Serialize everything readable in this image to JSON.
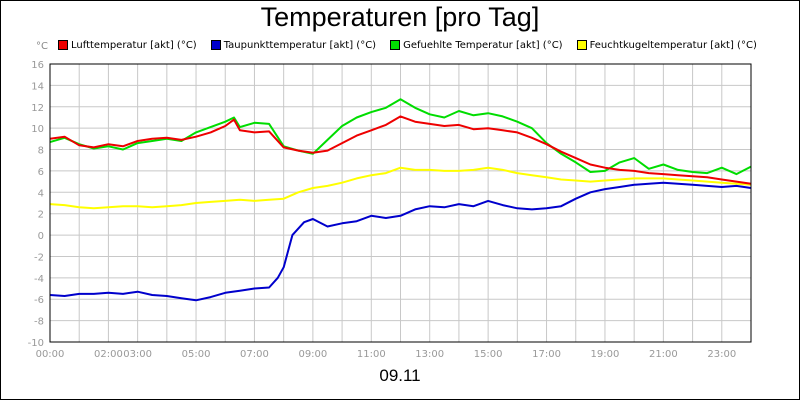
{
  "chart_data": {
    "type": "line",
    "title": "Temperaturen [pro Tag]",
    "y_unit": "°C",
    "xlabel": "09.11",
    "ylim": [
      -10,
      16
    ],
    "xlim": [
      0,
      24
    ],
    "y_ticks": [
      16,
      14,
      12,
      10,
      8,
      6,
      4,
      2,
      0,
      -2,
      -4,
      -6,
      -8,
      -10
    ],
    "x_ticks": [
      {
        "h": 0,
        "label": "00:00"
      },
      {
        "h": 2,
        "label": "02:00"
      },
      {
        "h": 3,
        "label": "03:00"
      },
      {
        "h": 5,
        "label": "05:00"
      },
      {
        "h": 7,
        "label": "07:00"
      },
      {
        "h": 9,
        "label": "09:00"
      },
      {
        "h": 11,
        "label": "11:00"
      },
      {
        "h": 13,
        "label": "13:00"
      },
      {
        "h": 15,
        "label": "15:00"
      },
      {
        "h": 17,
        "label": "17:00"
      },
      {
        "h": 19,
        "label": "19:00"
      },
      {
        "h": 21,
        "label": "21:00"
      },
      {
        "h": 23,
        "label": "23:00"
      }
    ],
    "grid": true,
    "legend_position": "top",
    "series": [
      {
        "name": "Lufttemperatur [akt] (°C)",
        "color": "#ee0000",
        "values": [
          [
            0,
            9.0
          ],
          [
            0.5,
            9.2
          ],
          [
            1,
            8.4
          ],
          [
            1.5,
            8.2
          ],
          [
            2,
            8.5
          ],
          [
            2.5,
            8.3
          ],
          [
            3,
            8.8
          ],
          [
            3.5,
            9.0
          ],
          [
            4,
            9.1
          ],
          [
            4.5,
            8.9
          ],
          [
            5,
            9.2
          ],
          [
            5.5,
            9.6
          ],
          [
            6,
            10.2
          ],
          [
            6.3,
            10.8
          ],
          [
            6.5,
            9.8
          ],
          [
            7,
            9.6
          ],
          [
            7.5,
            9.7
          ],
          [
            8,
            8.2
          ],
          [
            8.5,
            7.9
          ],
          [
            9,
            7.7
          ],
          [
            9.5,
            7.9
          ],
          [
            10,
            8.6
          ],
          [
            10.5,
            9.3
          ],
          [
            11,
            9.8
          ],
          [
            11.5,
            10.3
          ],
          [
            12,
            11.1
          ],
          [
            12.5,
            10.6
          ],
          [
            13,
            10.4
          ],
          [
            13.5,
            10.2
          ],
          [
            14,
            10.3
          ],
          [
            14.5,
            9.9
          ],
          [
            15,
            10.0
          ],
          [
            15.5,
            9.8
          ],
          [
            16,
            9.6
          ],
          [
            16.5,
            9.1
          ],
          [
            17,
            8.5
          ],
          [
            17.5,
            7.8
          ],
          [
            18,
            7.2
          ],
          [
            18.5,
            6.6
          ],
          [
            19,
            6.3
          ],
          [
            19.5,
            6.1
          ],
          [
            20,
            6.0
          ],
          [
            20.5,
            5.8
          ],
          [
            21,
            5.7
          ],
          [
            21.5,
            5.6
          ],
          [
            22,
            5.5
          ],
          [
            22.5,
            5.4
          ],
          [
            23,
            5.2
          ],
          [
            23.5,
            5.0
          ],
          [
            24,
            4.8
          ]
        ]
      },
      {
        "name": "Taupunkttemperatur [akt] (°C)",
        "color": "#0000cc",
        "values": [
          [
            0,
            -5.6
          ],
          [
            0.5,
            -5.7
          ],
          [
            1,
            -5.5
          ],
          [
            1.5,
            -5.5
          ],
          [
            2,
            -5.4
          ],
          [
            2.5,
            -5.5
          ],
          [
            3,
            -5.3
          ],
          [
            3.5,
            -5.6
          ],
          [
            4,
            -5.7
          ],
          [
            4.5,
            -5.9
          ],
          [
            5,
            -6.1
          ],
          [
            5.5,
            -5.8
          ],
          [
            6,
            -5.4
          ],
          [
            6.5,
            -5.2
          ],
          [
            7,
            -5.0
          ],
          [
            7.5,
            -4.9
          ],
          [
            7.8,
            -4.0
          ],
          [
            8,
            -3.0
          ],
          [
            8.3,
            0.0
          ],
          [
            8.7,
            1.2
          ],
          [
            9,
            1.5
          ],
          [
            9.5,
            0.8
          ],
          [
            10,
            1.1
          ],
          [
            10.5,
            1.3
          ],
          [
            11,
            1.8
          ],
          [
            11.5,
            1.6
          ],
          [
            12,
            1.8
          ],
          [
            12.5,
            2.4
          ],
          [
            13,
            2.7
          ],
          [
            13.5,
            2.6
          ],
          [
            14,
            2.9
          ],
          [
            14.5,
            2.7
          ],
          [
            15,
            3.2
          ],
          [
            15.5,
            2.8
          ],
          [
            16,
            2.5
          ],
          [
            16.5,
            2.4
          ],
          [
            17,
            2.5
          ],
          [
            17.5,
            2.7
          ],
          [
            18,
            3.4
          ],
          [
            18.5,
            4.0
          ],
          [
            19,
            4.3
          ],
          [
            19.5,
            4.5
          ],
          [
            20,
            4.7
          ],
          [
            20.5,
            4.8
          ],
          [
            21,
            4.9
          ],
          [
            21.5,
            4.8
          ],
          [
            22,
            4.7
          ],
          [
            22.5,
            4.6
          ],
          [
            23,
            4.5
          ],
          [
            23.5,
            4.6
          ],
          [
            24,
            4.4
          ]
        ]
      },
      {
        "name": "Gefuehlte Temperatur [akt] (°C)",
        "color": "#00dd00",
        "values": [
          [
            0,
            8.7
          ],
          [
            0.5,
            9.1
          ],
          [
            1,
            8.5
          ],
          [
            1.5,
            8.1
          ],
          [
            2,
            8.3
          ],
          [
            2.5,
            8.0
          ],
          [
            3,
            8.6
          ],
          [
            3.5,
            8.8
          ],
          [
            4,
            9.0
          ],
          [
            4.5,
            8.8
          ],
          [
            5,
            9.6
          ],
          [
            5.5,
            10.1
          ],
          [
            6,
            10.6
          ],
          [
            6.3,
            11.0
          ],
          [
            6.5,
            10.1
          ],
          [
            7,
            10.5
          ],
          [
            7.5,
            10.4
          ],
          [
            8,
            8.3
          ],
          [
            8.5,
            7.9
          ],
          [
            9,
            7.6
          ],
          [
            9.5,
            8.9
          ],
          [
            10,
            10.2
          ],
          [
            10.5,
            11.0
          ],
          [
            11,
            11.5
          ],
          [
            11.5,
            11.9
          ],
          [
            12,
            12.7
          ],
          [
            12.5,
            11.9
          ],
          [
            13,
            11.3
          ],
          [
            13.5,
            11.0
          ],
          [
            14,
            11.6
          ],
          [
            14.5,
            11.2
          ],
          [
            15,
            11.4
          ],
          [
            15.5,
            11.1
          ],
          [
            16,
            10.6
          ],
          [
            16.5,
            10.0
          ],
          [
            17,
            8.6
          ],
          [
            17.5,
            7.6
          ],
          [
            18,
            6.8
          ],
          [
            18.5,
            5.9
          ],
          [
            19,
            6.0
          ],
          [
            19.5,
            6.8
          ],
          [
            20,
            7.2
          ],
          [
            20.5,
            6.2
          ],
          [
            21,
            6.6
          ],
          [
            21.5,
            6.1
          ],
          [
            22,
            5.9
          ],
          [
            22.5,
            5.8
          ],
          [
            23,
            6.3
          ],
          [
            23.5,
            5.7
          ],
          [
            24,
            6.4
          ]
        ]
      },
      {
        "name": "Feuchtkugeltemperatur [akt] (°C)",
        "color": "#ffff00",
        "values": [
          [
            0,
            2.9
          ],
          [
            0.5,
            2.8
          ],
          [
            1,
            2.6
          ],
          [
            1.5,
            2.5
          ],
          [
            2,
            2.6
          ],
          [
            2.5,
            2.7
          ],
          [
            3,
            2.7
          ],
          [
            3.5,
            2.6
          ],
          [
            4,
            2.7
          ],
          [
            4.5,
            2.8
          ],
          [
            5,
            3.0
          ],
          [
            5.5,
            3.1
          ],
          [
            6,
            3.2
          ],
          [
            6.5,
            3.3
          ],
          [
            7,
            3.2
          ],
          [
            7.5,
            3.3
          ],
          [
            8,
            3.4
          ],
          [
            8.5,
            4.0
          ],
          [
            9,
            4.4
          ],
          [
            9.5,
            4.6
          ],
          [
            10,
            4.9
          ],
          [
            10.5,
            5.3
          ],
          [
            11,
            5.6
          ],
          [
            11.5,
            5.8
          ],
          [
            12,
            6.3
          ],
          [
            12.5,
            6.1
          ],
          [
            13,
            6.1
          ],
          [
            13.5,
            6.0
          ],
          [
            14,
            6.0
          ],
          [
            14.5,
            6.1
          ],
          [
            15,
            6.3
          ],
          [
            15.5,
            6.1
          ],
          [
            16,
            5.8
          ],
          [
            16.5,
            5.6
          ],
          [
            17,
            5.4
          ],
          [
            17.5,
            5.2
          ],
          [
            18,
            5.1
          ],
          [
            18.5,
            5.0
          ],
          [
            19,
            5.1
          ],
          [
            19.5,
            5.2
          ],
          [
            20,
            5.3
          ],
          [
            20.5,
            5.3
          ],
          [
            21,
            5.3
          ],
          [
            21.5,
            5.2
          ],
          [
            22,
            5.1
          ],
          [
            22.5,
            5.0
          ],
          [
            23,
            4.9
          ],
          [
            23.5,
            4.8
          ],
          [
            24,
            4.7
          ]
        ]
      }
    ]
  }
}
